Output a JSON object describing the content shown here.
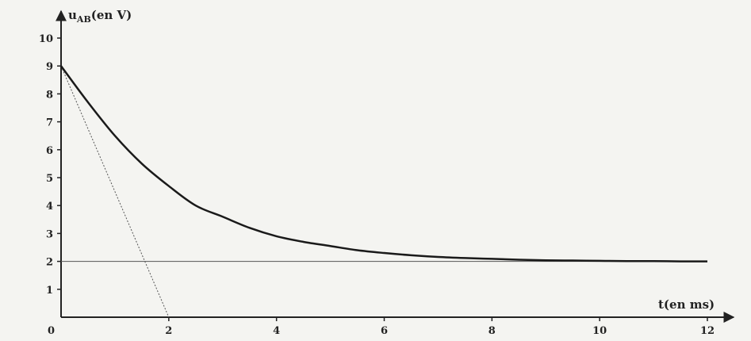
{
  "chart_data": {
    "type": "line",
    "ylabel_main": "u",
    "ylabel_sub": "AB",
    "ylabel_unit": "(en V)",
    "xlabel": "t(en ms)",
    "origin_label": "0",
    "xlim": [
      0,
      12
    ],
    "ylim": [
      0,
      10
    ],
    "x_ticks": [
      2,
      4,
      6,
      8,
      10,
      12
    ],
    "y_ticks": [
      1,
      2,
      3,
      4,
      5,
      6,
      7,
      8,
      9,
      10
    ],
    "grid": false,
    "series": [
      {
        "x": [
          0,
          0.5,
          1,
          1.5,
          2,
          2.5,
          3,
          3.5,
          4,
          4.5,
          5,
          5.5,
          6,
          6.5,
          7,
          7.5,
          8,
          8.5,
          9,
          9.5,
          10,
          10.5,
          11,
          11.5,
          12
        ],
        "y": [
          9,
          7.7,
          6.5,
          5.5,
          4.7,
          4.0,
          3.6,
          3.2,
          2.9,
          2.7,
          2.55,
          2.4,
          2.3,
          2.22,
          2.16,
          2.12,
          2.09,
          2.06,
          2.04,
          2.03,
          2.02,
          2.01,
          2.01,
          2.0,
          2.0
        ],
        "color": "#1a1a1a"
      }
    ],
    "annotations": [
      {
        "kind": "tangent_at_origin",
        "x": [
          0,
          2
        ],
        "y": [
          9,
          0
        ]
      },
      {
        "kind": "asymptote",
        "y": 2,
        "x": [
          0,
          12
        ]
      }
    ]
  }
}
